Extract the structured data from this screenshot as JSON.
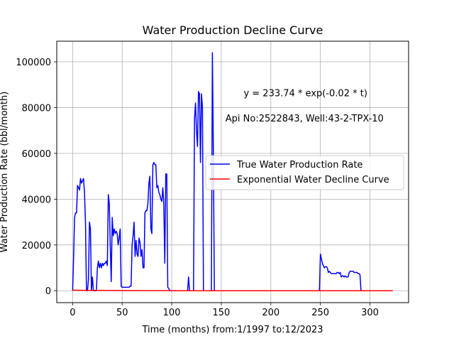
{
  "chart_data": {
    "type": "line",
    "title": "Water Production Decline Curve",
    "xlabel": "Time (months) from:1/1997 to:12/2023",
    "ylabel": "Water Production Rate (bbl/month)",
    "xlim": [
      -16,
      339
    ],
    "ylim": [
      -5200,
      109000
    ],
    "x_ticks": [
      0,
      50,
      100,
      150,
      200,
      250,
      300
    ],
    "y_ticks": [
      0,
      20000,
      40000,
      60000,
      80000,
      100000
    ],
    "y_tick_labels": [
      "0",
      "20000",
      "40000",
      "60000",
      "80000",
      "100000"
    ],
    "grid": true,
    "legend_position": "center-right",
    "annotations": [
      {
        "text": "y = 233.74 * exp(-0.02 * t)",
        "x": 235,
        "y": 85000
      },
      {
        "text": "Api No:2522843, Well:43-2-TPX-10",
        "x": 234,
        "y": 74000
      }
    ],
    "series": [
      {
        "name": "True Water Production Rate",
        "color": "#0000ff",
        "points": [
          [
            0,
            0
          ],
          [
            1,
            15000
          ],
          [
            2,
            32000
          ],
          [
            3,
            34000
          ],
          [
            4,
            34000
          ],
          [
            5,
            46000
          ],
          [
            6,
            45000
          ],
          [
            7,
            44000
          ],
          [
            8,
            49000
          ],
          [
            9,
            47000
          ],
          [
            10,
            48000
          ],
          [
            11,
            49000
          ],
          [
            12,
            43000
          ],
          [
            13,
            30000
          ],
          [
            14,
            0
          ],
          [
            15,
            0
          ],
          [
            16,
            5000
          ],
          [
            17,
            30000
          ],
          [
            18,
            27000
          ],
          [
            19,
            0
          ],
          [
            20,
            6000
          ],
          [
            21,
            0
          ],
          [
            22,
            0
          ],
          [
            23,
            0
          ],
          [
            24,
            0
          ],
          [
            25,
            10000
          ],
          [
            26,
            13000
          ],
          [
            27,
            10000
          ],
          [
            28,
            12000
          ],
          [
            29,
            10000
          ],
          [
            30,
            12000
          ],
          [
            31,
            11000
          ],
          [
            32,
            12000
          ],
          [
            33,
            12000
          ],
          [
            34,
            13000
          ],
          [
            35,
            11000
          ],
          [
            36,
            42000
          ],
          [
            37,
            38000
          ],
          [
            38,
            20000
          ],
          [
            39,
            4000
          ],
          [
            40,
            32000
          ],
          [
            41,
            24000
          ],
          [
            42,
            27000
          ],
          [
            43,
            25000
          ],
          [
            44,
            26000
          ],
          [
            45,
            25000
          ],
          [
            46,
            20000
          ],
          [
            47,
            23000
          ],
          [
            48,
            27000
          ],
          [
            49,
            2000
          ],
          [
            50,
            1500
          ],
          [
            51,
            1500
          ],
          [
            52,
            1500
          ],
          [
            53,
            1500
          ],
          [
            54,
            1500
          ],
          [
            55,
            1500
          ],
          [
            56,
            1500
          ],
          [
            57,
            1500
          ],
          [
            58,
            2000
          ],
          [
            59,
            2000
          ],
          [
            60,
            20000
          ],
          [
            61,
            24000
          ],
          [
            62,
            30000
          ],
          [
            63,
            15000
          ],
          [
            64,
            22000
          ],
          [
            65,
            16000
          ],
          [
            66,
            15000
          ],
          [
            67,
            23000
          ],
          [
            68,
            21000
          ],
          [
            69,
            15000
          ],
          [
            70,
            18000
          ],
          [
            71,
            10000
          ],
          [
            72,
            10000
          ],
          [
            73,
            34000
          ],
          [
            74,
            35000
          ],
          [
            75,
            35000
          ],
          [
            76,
            38000
          ],
          [
            77,
            47000
          ],
          [
            78,
            50000
          ],
          [
            79,
            27000
          ],
          [
            80,
            25000
          ],
          [
            81,
            55000
          ],
          [
            82,
            56000
          ],
          [
            83,
            55000
          ],
          [
            84,
            55000
          ],
          [
            85,
            45000
          ],
          [
            86,
            46000
          ],
          [
            87,
            43000
          ],
          [
            88,
            42000
          ],
          [
            89,
            40000
          ],
          [
            90,
            39000
          ],
          [
            91,
            45000
          ],
          [
            92,
            38000
          ],
          [
            93,
            12000
          ],
          [
            94,
            51000
          ],
          [
            95,
            51000
          ],
          [
            96,
            1500
          ],
          [
            97,
            1000
          ],
          [
            98,
            0
          ],
          [
            99,
            0
          ],
          [
            100,
            0
          ],
          [
            101,
            0
          ],
          [
            102,
            0
          ],
          [
            103,
            0
          ],
          [
            104,
            0
          ],
          [
            105,
            0
          ],
          [
            106,
            0
          ],
          [
            107,
            0
          ],
          [
            108,
            0
          ],
          [
            109,
            0
          ],
          [
            110,
            0
          ],
          [
            111,
            0
          ],
          [
            112,
            0
          ],
          [
            113,
            0
          ],
          [
            114,
            0
          ],
          [
            115,
            0
          ],
          [
            116,
            0
          ],
          [
            117,
            6000
          ],
          [
            118,
            0
          ],
          [
            119,
            0
          ],
          [
            120,
            0
          ],
          [
            121,
            0
          ],
          [
            122,
            0
          ],
          [
            123,
            75000
          ],
          [
            124,
            82000
          ],
          [
            125,
            70000
          ],
          [
            126,
            63000
          ],
          [
            127,
            87000
          ],
          [
            128,
            86000
          ],
          [
            129,
            56000
          ],
          [
            130,
            86000
          ],
          [
            131,
            80000
          ],
          [
            132,
            0
          ],
          [
            133,
            0
          ],
          [
            134,
            0
          ],
          [
            135,
            0
          ],
          [
            136,
            0
          ],
          [
            137,
            0
          ],
          [
            138,
            0
          ],
          [
            139,
            0
          ],
          [
            140,
            0
          ],
          [
            141,
            104000
          ],
          [
            142,
            60000
          ],
          [
            143,
            0
          ],
          [
            144,
            0
          ],
          [
            145,
            0
          ],
          [
            146,
            0
          ],
          [
            147,
            0
          ],
          [
            148,
            0
          ],
          [
            149,
            0
          ],
          [
            150,
            0
          ],
          [
            160,
            0
          ],
          [
            170,
            0
          ],
          [
            180,
            0
          ],
          [
            190,
            0
          ],
          [
            200,
            0
          ],
          [
            210,
            0
          ],
          [
            220,
            0
          ],
          [
            230,
            0
          ],
          [
            240,
            0
          ],
          [
            249,
            0
          ],
          [
            250,
            16000
          ],
          [
            251,
            14000
          ],
          [
            252,
            12000
          ],
          [
            253,
            11000
          ],
          [
            254,
            10000
          ],
          [
            255,
            10500
          ],
          [
            256,
            10500
          ],
          [
            257,
            10000
          ],
          [
            258,
            8000
          ],
          [
            259,
            8500
          ],
          [
            260,
            8000
          ],
          [
            261,
            7500
          ],
          [
            262,
            7500
          ],
          [
            263,
            7500
          ],
          [
            264,
            7500
          ],
          [
            265,
            7500
          ],
          [
            266,
            7500
          ],
          [
            267,
            8000
          ],
          [
            268,
            8000
          ],
          [
            269,
            7500
          ],
          [
            270,
            8000
          ],
          [
            271,
            6000
          ],
          [
            272,
            6500
          ],
          [
            273,
            6500
          ],
          [
            274,
            6000
          ],
          [
            275,
            6500
          ],
          [
            276,
            6000
          ],
          [
            277,
            6000
          ],
          [
            278,
            6000
          ],
          [
            279,
            8000
          ],
          [
            280,
            8500
          ],
          [
            281,
            8500
          ],
          [
            282,
            8500
          ],
          [
            283,
            8500
          ],
          [
            284,
            8000
          ],
          [
            285,
            8000
          ],
          [
            286,
            8000
          ],
          [
            287,
            8000
          ],
          [
            288,
            7500
          ],
          [
            289,
            7500
          ],
          [
            290,
            7000
          ],
          [
            291,
            0
          ],
          [
            292,
            0
          ],
          [
            300,
            0
          ],
          [
            310,
            0
          ],
          [
            323,
            0
          ]
        ]
      },
      {
        "name": "Exponential Water Decline Curve",
        "color": "#ff0000",
        "model": {
          "a": 233.74,
          "b": -0.02
        },
        "x_range": [
          0,
          323
        ]
      }
    ]
  }
}
